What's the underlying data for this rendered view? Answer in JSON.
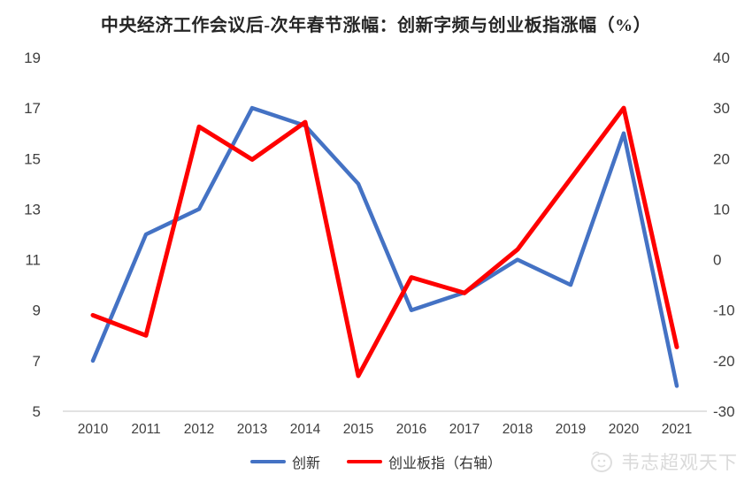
{
  "title": "中央经济工作会议后-次年春节涨幅：创新字频与创业板指涨幅（%）",
  "chart_data": {
    "type": "line",
    "categories": [
      "2010",
      "2011",
      "2012",
      "2013",
      "2014",
      "2015",
      "2016",
      "2017",
      "2018",
      "2019",
      "2020",
      "2021"
    ],
    "series": [
      {
        "name": "创新",
        "axis": "left",
        "color": "#4472C4",
        "stroke_width": 4.5,
        "values": [
          7,
          12,
          13,
          17,
          16.3,
          14,
          9,
          9.7,
          11,
          10,
          16,
          6
        ]
      },
      {
        "name": "创业板指（右轴）",
        "axis": "right",
        "color": "#FE0000",
        "stroke_width": 5,
        "values": [
          -11,
          -15,
          26.3,
          19.8,
          27.2,
          -23,
          -3.5,
          -6.6,
          2,
          16,
          30,
          -17.3
        ]
      }
    ],
    "left_axis": {
      "ticks": [
        19,
        17,
        15,
        13,
        11,
        9,
        7,
        5
      ],
      "ylim": [
        5,
        19
      ]
    },
    "right_axis": {
      "ticks": [
        40,
        30,
        20,
        10,
        0,
        -10,
        -20,
        -30
      ],
      "ylim": [
        -30,
        40
      ]
    },
    "xlabel": "",
    "ylabel": "",
    "grid": "off",
    "legend_position": "bottom"
  },
  "legend": {
    "items": [
      {
        "label": "创新",
        "color": "#4472C4"
      },
      {
        "label": "创业板指（右轴）",
        "color": "#FE0000"
      }
    ]
  },
  "watermark": {
    "text": "韦志超观天下"
  },
  "colors": {
    "axis_line": "#D9D9D9",
    "tick_text": "#3f3f3f",
    "title_text": "#262626",
    "watermark": "#DADADA"
  }
}
